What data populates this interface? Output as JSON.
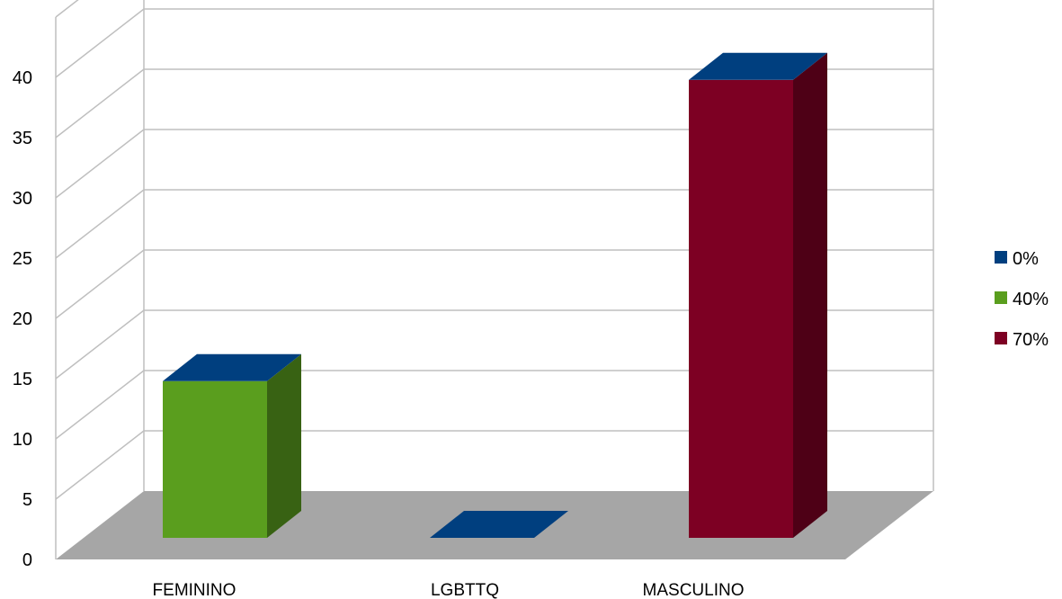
{
  "chart_data": {
    "type": "bar",
    "style": "3d-clustered-column",
    "categories": [
      "FEMININO",
      "LGBTTQ",
      "MASCULINO"
    ],
    "series": [
      {
        "name": "0%",
        "color": "#003F7F",
        "values": [
          0,
          0,
          0
        ]
      },
      {
        "name": "40%",
        "color": "#5A9E1E",
        "values": [
          13,
          0,
          0
        ]
      },
      {
        "name": "70%",
        "color": "#7D0023",
        "values": [
          0,
          0,
          38
        ]
      }
    ],
    "y_ticks": [
      "0",
      "5",
      "10",
      "15",
      "20",
      "25",
      "30",
      "35",
      "40"
    ],
    "ylim": [
      0,
      45
    ],
    "grid": true,
    "floor_color": "#A6A6A6",
    "legend": "right"
  }
}
